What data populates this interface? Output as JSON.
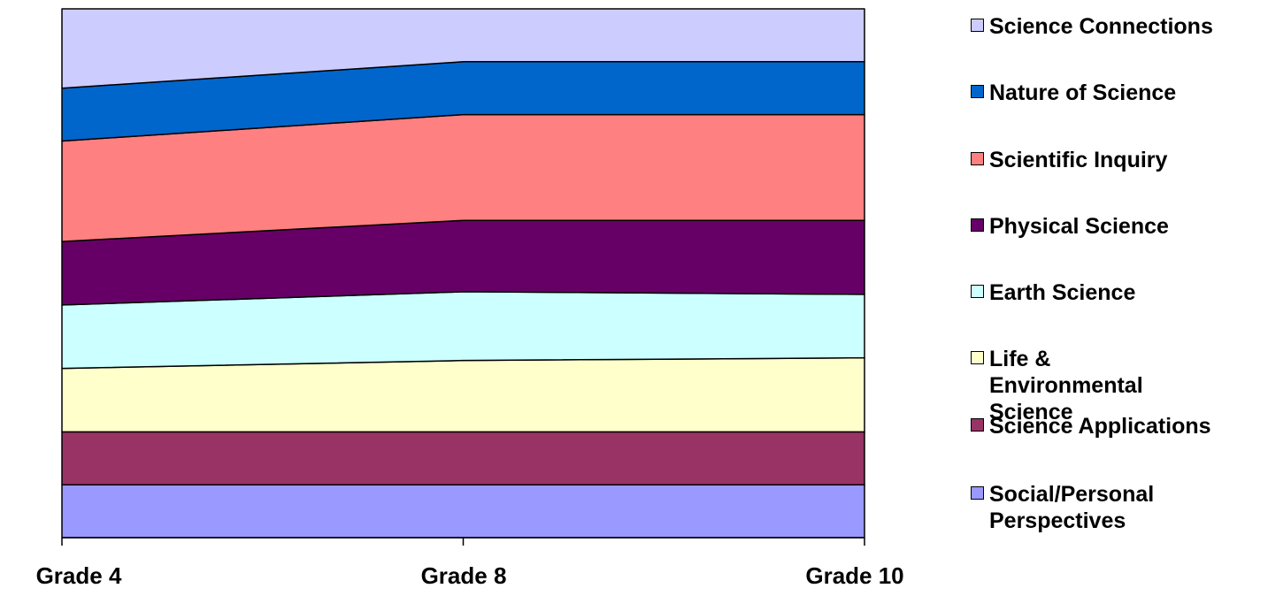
{
  "chart_data": {
    "type": "area",
    "stacked": true,
    "percent_stacked": true,
    "categories": [
      "Grade 4",
      "Grade 8",
      "Grade 10"
    ],
    "series": [
      {
        "name": "Social/Personal Perspectives",
        "color": "#9999FF",
        "values": [
          10,
          10,
          10
        ]
      },
      {
        "name": "Science Applications",
        "color": "#993366",
        "values": [
          10,
          10,
          10
        ]
      },
      {
        "name": "Life & Environmental Science",
        "color": "#FFFFCC",
        "values": [
          12,
          13.5,
          14
        ]
      },
      {
        "name": "Earth Science",
        "color": "#CCFFFF",
        "values": [
          12,
          13,
          12
        ]
      },
      {
        "name": "Physical Science",
        "color": "#660066",
        "values": [
          12,
          13.5,
          14
        ]
      },
      {
        "name": "Scientific Inquiry",
        "color": "#FF8080",
        "values": [
          19,
          20,
          20
        ]
      },
      {
        "name": "Nature of Science",
        "color": "#0066CC",
        "values": [
          10,
          10,
          10
        ]
      },
      {
        "name": "Science Connections",
        "color": "#CCCCFF",
        "values": [
          15,
          10,
          10
        ]
      }
    ],
    "ylim": [
      0,
      100
    ],
    "grid": false,
    "legend_position": "right",
    "title": "",
    "xlabel": "",
    "ylabel": ""
  }
}
